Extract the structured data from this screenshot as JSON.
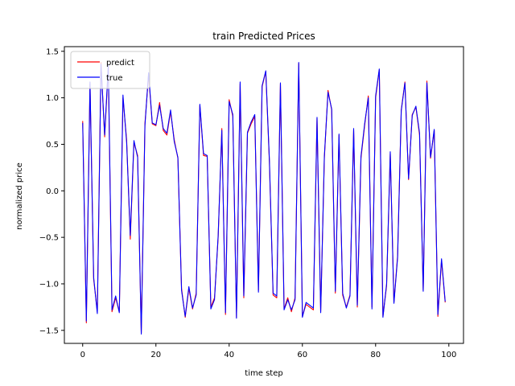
{
  "chart_data": {
    "type": "line",
    "title": "train Predicted Prices",
    "xlabel": "time step",
    "ylabel": "normalized price",
    "xlim": [
      -5,
      104
    ],
    "ylim": [
      -1.64,
      1.55
    ],
    "xticks": [
      0,
      20,
      40,
      60,
      80,
      100
    ],
    "yticks": [
      -1.5,
      -1.0,
      -0.5,
      0.0,
      0.5,
      1.0,
      1.5
    ],
    "ytick_labels": [
      "−1.5",
      "−1.0",
      "−0.5",
      "0.0",
      "0.5",
      "1.0",
      "1.5"
    ],
    "grid": false,
    "legend_position": "top-left",
    "series": [
      {
        "name": "predict",
        "color": "#ff0000",
        "x": [
          0,
          1,
          2,
          3,
          4,
          5,
          6,
          7,
          8,
          9,
          10,
          11,
          12,
          13,
          14,
          15,
          16,
          17,
          18,
          19,
          20,
          21,
          22,
          23,
          24,
          25,
          26,
          27,
          28,
          29,
          30,
          31,
          32,
          33,
          34,
          35,
          36,
          37,
          38,
          39,
          40,
          41,
          42,
          43,
          44,
          45,
          46,
          47,
          48,
          49,
          50,
          51,
          52,
          53,
          54,
          55,
          56,
          57,
          58,
          59,
          60,
          61,
          62,
          63,
          64,
          65,
          66,
          67,
          68,
          69,
          70,
          71,
          72,
          73,
          74,
          75,
          76,
          77,
          78,
          79,
          80,
          81,
          82,
          83,
          84,
          85,
          86,
          87,
          88,
          89,
          90,
          91,
          92,
          93,
          94,
          95,
          96,
          97,
          98,
          99
        ],
        "values": [
          0.75,
          -1.42,
          1.15,
          -0.95,
          -1.3,
          1.38,
          0.58,
          1.33,
          -1.3,
          -1.15,
          -1.3,
          1.0,
          0.55,
          -0.52,
          0.52,
          0.38,
          -1.53,
          0.72,
          1.25,
          0.72,
          0.7,
          0.95,
          0.65,
          0.6,
          0.85,
          0.55,
          0.35,
          -1.05,
          -1.36,
          -1.05,
          -1.27,
          -1.1,
          0.92,
          0.38,
          0.37,
          -1.25,
          -1.15,
          -0.5,
          0.67,
          -1.33,
          0.98,
          0.8,
          -1.36,
          1.15,
          -1.15,
          0.62,
          0.72,
          0.8,
          -1.07,
          1.12,
          1.28,
          0.3,
          -1.12,
          -1.15,
          1.15,
          -1.27,
          -1.15,
          -1.3,
          -1.15,
          1.37,
          -1.35,
          -1.22,
          -1.25,
          -1.28,
          0.78,
          -1.3,
          0.35,
          1.08,
          0.87,
          -1.1,
          0.6,
          -1.12,
          -1.25,
          -1.12,
          0.65,
          -1.25,
          0.35,
          0.7,
          1.02,
          -1.25,
          1.0,
          1.3,
          -1.35,
          -1.02,
          0.4,
          -1.2,
          -0.7,
          0.87,
          1.17,
          0.12,
          0.82,
          0.9,
          0.6,
          -1.07,
          1.18,
          0.35,
          0.65,
          -1.35,
          -0.75,
          -1.2
        ]
      },
      {
        "name": "true",
        "color": "#0000ff",
        "x": [
          0,
          1,
          2,
          3,
          4,
          5,
          6,
          7,
          8,
          9,
          10,
          11,
          12,
          13,
          14,
          15,
          16,
          17,
          18,
          19,
          20,
          21,
          22,
          23,
          24,
          25,
          26,
          27,
          28,
          29,
          30,
          31,
          32,
          33,
          34,
          35,
          36,
          37,
          38,
          39,
          40,
          41,
          42,
          43,
          44,
          45,
          46,
          47,
          48,
          49,
          50,
          51,
          52,
          53,
          54,
          55,
          56,
          57,
          58,
          59,
          60,
          61,
          62,
          63,
          64,
          65,
          66,
          67,
          68,
          69,
          70,
          71,
          72,
          73,
          74,
          75,
          76,
          77,
          78,
          79,
          80,
          81,
          82,
          83,
          84,
          85,
          86,
          87,
          88,
          89,
          90,
          91,
          92,
          93,
          94,
          95,
          96,
          97,
          98,
          99
        ],
        "values": [
          0.73,
          -1.4,
          1.17,
          -0.93,
          -1.32,
          1.36,
          0.6,
          1.35,
          -1.28,
          -1.13,
          -1.31,
          1.03,
          0.52,
          -0.48,
          0.54,
          0.36,
          -1.54,
          0.7,
          1.27,
          0.73,
          0.71,
          0.92,
          0.67,
          0.62,
          0.87,
          0.53,
          0.36,
          -1.07,
          -1.35,
          -1.03,
          -1.26,
          -1.12,
          0.93,
          0.4,
          0.38,
          -1.27,
          -1.17,
          -0.48,
          0.65,
          -1.31,
          0.96,
          0.82,
          -1.37,
          1.17,
          -1.13,
          0.63,
          0.74,
          0.82,
          -1.09,
          1.13,
          1.29,
          0.32,
          -1.1,
          -1.13,
          1.16,
          -1.28,
          -1.17,
          -1.28,
          -1.17,
          1.38,
          -1.36,
          -1.2,
          -1.23,
          -1.26,
          0.79,
          -1.31,
          0.37,
          1.06,
          0.88,
          -1.08,
          0.61,
          -1.1,
          -1.26,
          -1.13,
          0.67,
          -1.23,
          0.37,
          0.72,
          1.0,
          -1.27,
          1.02,
          1.31,
          -1.36,
          -1.0,
          0.42,
          -1.21,
          -0.72,
          0.86,
          1.16,
          0.13,
          0.81,
          0.91,
          0.62,
          -1.08,
          1.16,
          0.36,
          0.66,
          -1.33,
          -0.73,
          -1.19
        ]
      }
    ]
  }
}
